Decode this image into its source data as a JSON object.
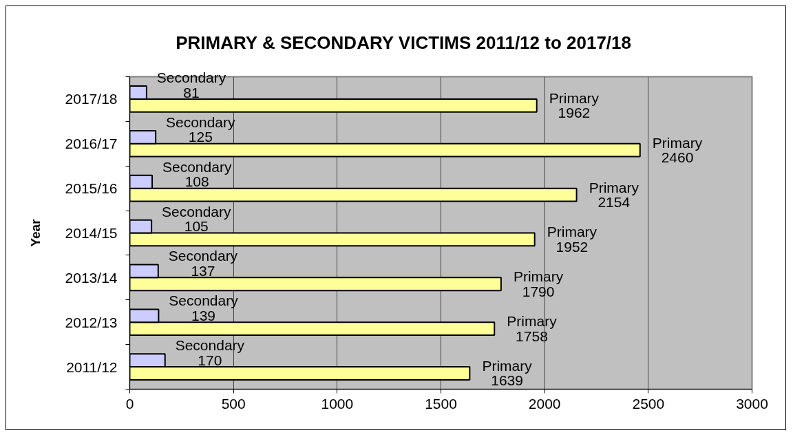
{
  "chart_data": {
    "type": "bar",
    "orientation": "horizontal",
    "title": "PRIMARY & SECONDARY VICTIMS 2011/12 to 2017/18",
    "ylabel": "Year",
    "categories": [
      "2017/18",
      "2016/17",
      "2015/16",
      "2014/15",
      "2013/14",
      "2012/13",
      "2011/12"
    ],
    "series": [
      {
        "name": "Primary",
        "color": "#ffff99",
        "values": [
          1962,
          2460,
          2154,
          1952,
          1790,
          1758,
          1639
        ]
      },
      {
        "name": "Secondary",
        "color": "#ccccff",
        "values": [
          81,
          125,
          108,
          105,
          137,
          139,
          170
        ]
      }
    ],
    "xlim": [
      0,
      3000
    ],
    "xticks": [
      0,
      500,
      1000,
      1500,
      2000,
      2500,
      3000
    ],
    "grid": "x",
    "data_labels": true
  }
}
